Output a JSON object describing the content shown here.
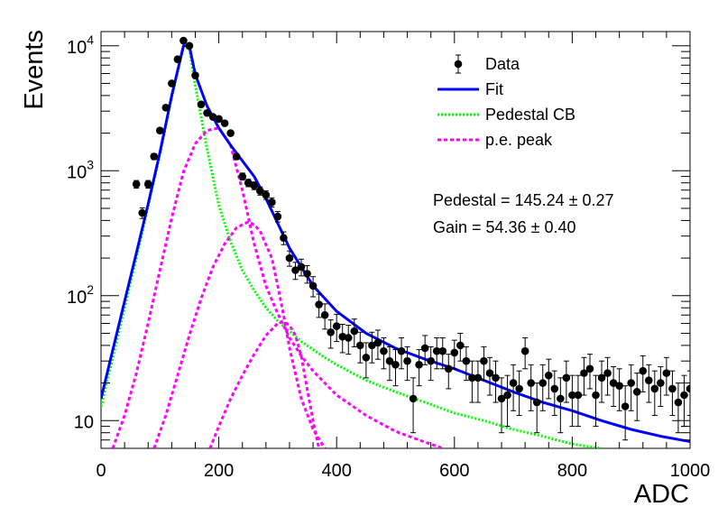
{
  "chart_data": {
    "type": "scatter",
    "title": "",
    "xlabel": "ADC",
    "ylabel": "Events",
    "xlim": [
      0,
      1000
    ],
    "ylim": [
      6,
      13000
    ],
    "y_scale": "log",
    "grid": false,
    "legend_position": "top-right",
    "x_ticks": [
      0,
      200,
      400,
      600,
      800,
      1000
    ],
    "x_tick_labels": [
      "0",
      "200",
      "400",
      "600",
      "800",
      "1000"
    ],
    "y_ticks": [
      {
        "value": 10,
        "mantissa": "10",
        "exponent": ""
      },
      {
        "value": 100,
        "mantissa": "10",
        "exponent": "2"
      },
      {
        "value": 1000,
        "mantissa": "10",
        "exponent": "3"
      },
      {
        "value": 10000,
        "mantissa": "10",
        "exponent": "4"
      }
    ],
    "legend": [
      {
        "label": "Data",
        "style": "marker",
        "color": "#000000"
      },
      {
        "label": "Fit",
        "style": "solid",
        "color": "#0000ff"
      },
      {
        "label": "Pedestal CB",
        "style": "dotted",
        "color": "#00ff00"
      },
      {
        "label": "p.e. peak",
        "style": "dashed",
        "color": "#ff00ff"
      }
    ],
    "stats": [
      {
        "label": "Pedestal = 145.24",
        "error": "0.27"
      },
      {
        "label": "Gain = 54.36",
        "error": "0.40"
      }
    ],
    "series": [
      {
        "name": "Data",
        "kind": "points",
        "color": "#000000",
        "x": [
          60,
          70,
          80,
          90,
          100,
          110,
          120,
          130,
          140,
          150,
          160,
          170,
          180,
          190,
          200,
          210,
          220,
          230,
          240,
          250,
          260,
          270,
          280,
          290,
          300,
          310,
          320,
          330,
          340,
          350,
          360,
          370,
          380,
          390,
          400,
          410,
          420,
          430,
          440,
          450,
          460,
          470,
          480,
          490,
          500,
          510,
          520,
          530,
          540,
          550,
          560,
          570,
          580,
          590,
          600,
          610,
          620,
          630,
          640,
          650,
          660,
          670,
          680,
          690,
          700,
          710,
          720,
          730,
          740,
          750,
          760,
          770,
          780,
          790,
          800,
          810,
          820,
          830,
          840,
          850,
          860,
          870,
          880,
          890,
          900,
          910,
          920,
          930,
          940,
          950,
          960,
          970,
          980,
          990,
          1000
        ],
        "y": [
          780,
          460,
          780,
          1300,
          2100,
          3200,
          5000,
          7800,
          11000,
          10000,
          5800,
          3400,
          2900,
          2700,
          2600,
          2400,
          2000,
          1300,
          900,
          800,
          760,
          690,
          640,
          560,
          430,
          290,
          200,
          160,
          170,
          150,
          120,
          85,
          70,
          51,
          57,
          47,
          46,
          52,
          40,
          32,
          40,
          42,
          36,
          30,
          28,
          36,
          30,
          15,
          28,
          38,
          30,
          36,
          36,
          26,
          35,
          40,
          30,
          22,
          22,
          30,
          24,
          22,
          15,
          16,
          20,
          18,
          36,
          20,
          14,
          20,
          23,
          18,
          15,
          22,
          16,
          16,
          24,
          26,
          16,
          22,
          24,
          20,
          19,
          13,
          20,
          17,
          25,
          21,
          18,
          20,
          24,
          18,
          14,
          16,
          18
        ],
        "errors": [
          55,
          45,
          55,
          70,
          90,
          110,
          140,
          170,
          200,
          190,
          150,
          115,
          105,
          100,
          100,
          95,
          88,
          70,
          58,
          55,
          54,
          52,
          50,
          47,
          41,
          34,
          28,
          25,
          26,
          24,
          22,
          18,
          16,
          13,
          14,
          12,
          12,
          13,
          11,
          10,
          11,
          11,
          10,
          9,
          9,
          10,
          9,
          7,
          9,
          10,
          9,
          10,
          10,
          8,
          9,
          10,
          9,
          8,
          8,
          9,
          8,
          8,
          7,
          7,
          8,
          7,
          10,
          8,
          6,
          8,
          8,
          7,
          7,
          8,
          7,
          7,
          8,
          8,
          7,
          8,
          8,
          7,
          7,
          6,
          8,
          7,
          8,
          7,
          7,
          7,
          8,
          7,
          6,
          7,
          7
        ]
      },
      {
        "name": "Fit",
        "kind": "curve",
        "color": "#0000ff",
        "x": [
          0,
          20,
          40,
          60,
          80,
          100,
          120,
          140,
          150,
          160,
          180,
          200,
          220,
          240,
          260,
          280,
          300,
          320,
          340,
          360,
          380,
          400,
          450,
          500,
          550,
          600,
          650,
          700,
          750,
          800,
          850,
          900,
          950,
          1000
        ],
        "y": [
          15,
          37,
          90,
          220,
          540,
          1400,
          4000,
          10000,
          10000,
          5900,
          3300,
          2200,
          1600,
          1200,
          900,
          600,
          380,
          240,
          170,
          120,
          95,
          75,
          50,
          38,
          31,
          26,
          21,
          17,
          14,
          12,
          10,
          8.5,
          7.5,
          6.8
        ]
      },
      {
        "name": "Pedestal CB",
        "kind": "curve",
        "color": "#00ff00",
        "x": [
          0,
          20,
          40,
          60,
          80,
          100,
          120,
          140,
          150,
          160,
          180,
          200,
          220,
          240,
          260,
          280,
          300,
          320,
          340,
          360,
          380,
          400,
          450,
          500,
          550,
          600,
          650,
          700,
          750,
          800,
          850
        ],
        "y": [
          13,
          32,
          80,
          200,
          520,
          1350,
          3900,
          9800,
          9500,
          4800,
          1500,
          530,
          270,
          160,
          110,
          80,
          63,
          52,
          43,
          37,
          32,
          28,
          21,
          17,
          14,
          11.5,
          10,
          8.5,
          7.5,
          6.5,
          6
        ]
      },
      {
        "name": "p.e. peak 1",
        "kind": "curve",
        "color": "#ff00ff",
        "x": [
          20,
          40,
          60,
          80,
          100,
          120,
          140,
          160,
          180,
          200,
          220,
          240,
          260,
          280,
          300,
          320,
          340,
          360,
          380,
          400,
          450,
          500,
          540,
          580
        ],
        "y": [
          6,
          11,
          24,
          60,
          160,
          420,
          980,
          1650,
          2100,
          2200,
          1600,
          700,
          260,
          120,
          72,
          46,
          33,
          25,
          20,
          16,
          11,
          8.2,
          7,
          6
        ]
      },
      {
        "name": "p.e. peak 2",
        "kind": "curve",
        "color": "#ff00ff",
        "x": [
          90,
          110,
          130,
          150,
          170,
          190,
          210,
          230,
          250,
          260,
          270,
          290,
          300,
          310,
          320,
          340,
          360,
          380
        ],
        "y": [
          6,
          11,
          23,
          48,
          95,
          170,
          260,
          350,
          390,
          370,
          330,
          200,
          120,
          70,
          38,
          15,
          8.5,
          6
        ]
      },
      {
        "name": "p.e. peak 3",
        "kind": "curve",
        "color": "#ff00ff",
        "x": [
          185,
          200,
          220,
          240,
          260,
          280,
          300,
          310,
          320,
          330,
          340,
          350,
          360,
          370
        ],
        "y": [
          6,
          9,
          15,
          23,
          34,
          48,
          60,
          62,
          58,
          48,
          33,
          18,
          10,
          6
        ]
      }
    ]
  }
}
